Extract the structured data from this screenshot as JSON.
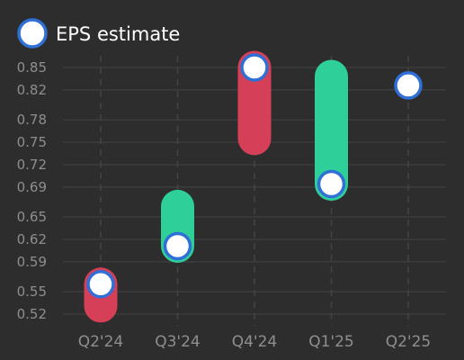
{
  "legend": {
    "label": "EPS estimate"
  },
  "colors": {
    "background": "#2d2d2d",
    "grid": "#444444",
    "tick_text": "#8e8e8e",
    "marker_fill": "#ffffff",
    "marker_stroke": "#2f6fd6",
    "beat": "#2ecf98",
    "miss": "#d63f58"
  },
  "chart_data": {
    "type": "range-dot",
    "title": "",
    "xlabel": "",
    "ylabel": "",
    "categories": [
      "Q2'24",
      "Q3'24",
      "Q4'24",
      "Q1'25",
      "Q2'25"
    ],
    "y_ticks": [
      "0.52",
      "0.55",
      "0.59",
      "0.62",
      "0.65",
      "0.69",
      "0.72",
      "0.75",
      "0.78",
      "0.82",
      "0.85"
    ],
    "ylim": [
      0.52,
      0.85
    ],
    "grid": true,
    "legend_position": "top-left",
    "series": [
      {
        "name": "EPS estimate",
        "values": [
          0.56,
          0.611,
          0.85,
          0.694,
          0.826
        ]
      }
    ],
    "actuals": [
      0.531,
      0.664,
      0.755,
      0.838,
      null
    ],
    "bar_status": [
      "miss",
      "beat",
      "miss",
      "beat",
      null
    ]
  }
}
